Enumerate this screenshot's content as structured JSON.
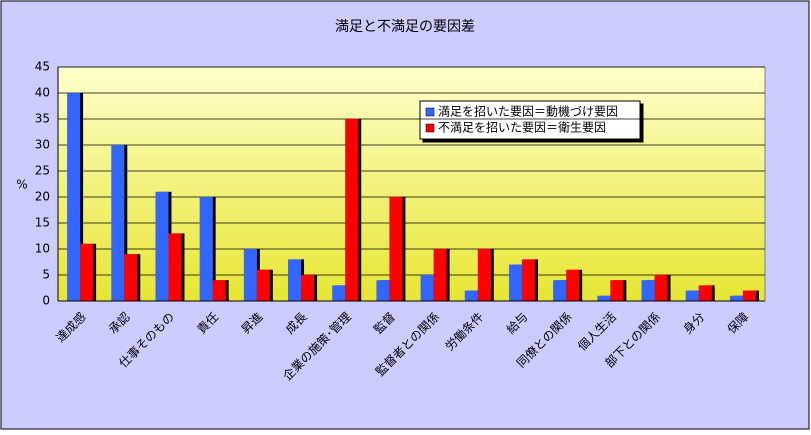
{
  "chart_data": {
    "type": "bar",
    "title": "満足と不満足の要因差",
    "y_label": "%",
    "categories": [
      "達成感",
      "承認",
      "仕事そのもの",
      "責任",
      "昇進",
      "成長",
      "企業の施策･管理",
      "監督",
      "監督者との関係",
      "労働条件",
      "給与",
      "同僚との関係",
      "個人生活",
      "部下との関係",
      "身分",
      "保障"
    ],
    "series": [
      {
        "name": "満足を招いた要因＝動機づけ要因",
        "color": "#3366ff",
        "values": [
          40,
          30,
          21,
          20,
          10,
          8,
          3,
          4,
          5,
          2,
          7,
          4,
          1,
          4,
          2,
          1
        ]
      },
      {
        "name": "不満足を招いた要因＝衛生要因",
        "color": "#ff0000",
        "values": [
          11,
          9,
          13,
          4,
          6,
          5,
          35,
          20,
          10,
          10,
          8,
          6,
          4,
          5,
          3,
          2
        ]
      }
    ],
    "ylim": [
      0,
      45
    ],
    "yticks": [
      0,
      5,
      10,
      15,
      20,
      25,
      30,
      35,
      40,
      45
    ],
    "grid": true
  }
}
